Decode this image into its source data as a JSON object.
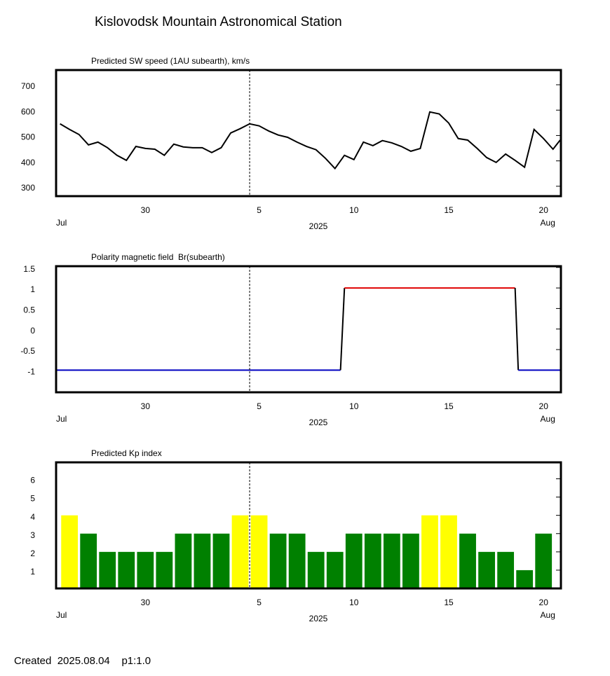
{
  "title": "Kislovodsk Mountain Astronomical Station",
  "footer": "Created  2025.08.04    p1:1.0",
  "chart_data": [
    {
      "type": "line",
      "title": "Predicted SW speed (1AU subearth), km/s",
      "color": "#000000",
      "x": [
        "2025-07-25T12:00",
        "2025-07-26T00:00",
        "2025-07-26T12:00",
        "2025-07-27T00:00",
        "2025-07-27T12:00",
        "2025-07-28T00:00",
        "2025-07-28T12:00",
        "2025-07-29T00:00",
        "2025-07-29T12:00",
        "2025-07-30T00:00",
        "2025-07-30T12:00",
        "2025-07-31T00:00",
        "2025-07-31T12:00",
        "2025-08-01T00:00",
        "2025-08-01T12:00",
        "2025-08-02T00:00",
        "2025-08-02T12:00",
        "2025-08-03T00:00",
        "2025-08-03T12:00",
        "2025-08-04T00:00",
        "2025-08-04T12:00",
        "2025-08-05T00:00",
        "2025-08-05T12:00",
        "2025-08-06T00:00",
        "2025-08-06T12:00",
        "2025-08-07T00:00",
        "2025-08-07T12:00",
        "2025-08-08T00:00",
        "2025-08-08T12:00",
        "2025-08-09T00:00",
        "2025-08-09T12:00",
        "2025-08-10T00:00",
        "2025-08-10T12:00",
        "2025-08-11T00:00",
        "2025-08-11T12:00",
        "2025-08-12T00:00",
        "2025-08-12T12:00",
        "2025-08-13T00:00",
        "2025-08-13T12:00",
        "2025-08-14T00:00",
        "2025-08-14T12:00",
        "2025-08-15T00:00",
        "2025-08-15T12:00",
        "2025-08-16T00:00",
        "2025-08-16T12:00",
        "2025-08-17T00:00",
        "2025-08-17T12:00",
        "2025-08-18T00:00",
        "2025-08-18T12:00",
        "2025-08-19T00:00",
        "2025-08-19T12:00",
        "2025-08-20T00:00",
        "2025-08-20T12:00",
        "2025-08-20T21:00"
      ],
      "values": [
        546,
        524,
        504,
        463,
        474,
        452,
        422,
        402,
        457,
        449,
        446,
        422,
        466,
        455,
        452,
        452,
        433,
        452,
        510,
        527,
        546,
        538,
        518,
        502,
        493,
        474,
        457,
        444,
        410,
        370,
        422,
        405,
        474,
        460,
        480,
        471,
        457,
        438,
        449,
        593,
        585,
        549,
        488,
        482,
        449,
        413,
        394,
        427,
        402,
        375,
        524,
        488,
        446,
        482
      ],
      "xlim": [
        "2025-07-25T07:00",
        "2025-08-20T22:00"
      ],
      "xticks": [
        {
          "value": "2025-07-30",
          "label": "30"
        },
        {
          "value": "2025-08-05",
          "label": "5"
        },
        {
          "value": "2025-08-10",
          "label": "10"
        },
        {
          "value": "2025-08-15",
          "label": "15"
        },
        {
          "value": "2025-08-20",
          "label": "20"
        }
      ],
      "month_labels": [
        {
          "value": "2025-07-25T07:00",
          "label": "Jul"
        },
        {
          "value": "2025-08-20",
          "label": "Aug"
        }
      ],
      "year_label": "2025",
      "ylim": [
        261,
        758
      ],
      "yticks": [
        700,
        600,
        500,
        400,
        300
      ],
      "marker_x": "2025-08-04T12:00"
    },
    {
      "type": "polarity",
      "title": "Polarity magnetic field  Br(subearth)",
      "positive_color": "#e00000",
      "negative_color": "#0000c0",
      "color": "#000000",
      "x": [
        "2025-07-25T07:00",
        "2025-08-09T07:00",
        "2025-08-09T12:00",
        "2025-08-18T12:00",
        "2025-08-18T16:00",
        "2025-08-20T22:00"
      ],
      "values": [
        -1,
        -1,
        1,
        1,
        -1,
        -1
      ],
      "xlim": [
        "2025-07-25T07:00",
        "2025-08-20T22:00"
      ],
      "xticks": [
        {
          "value": "2025-07-30",
          "label": "30"
        },
        {
          "value": "2025-08-05",
          "label": "5"
        },
        {
          "value": "2025-08-10",
          "label": "10"
        },
        {
          "value": "2025-08-15",
          "label": "15"
        },
        {
          "value": "2025-08-20",
          "label": "20"
        }
      ],
      "month_labels": [
        {
          "value": "2025-07-25T07:00",
          "label": "Jul"
        },
        {
          "value": "2025-08-20",
          "label": "Aug"
        }
      ],
      "year_label": "2025",
      "ylim": [
        -1.54,
        1.53
      ],
      "yticks": [
        1.5,
        1,
        0.5,
        0,
        -0.5,
        -1
      ],
      "marker_x": "2025-08-04T12:00"
    },
    {
      "type": "bar",
      "title": "Predicted Kp index",
      "x": [
        "2025-07-26",
        "2025-07-27",
        "2025-07-28",
        "2025-07-29",
        "2025-07-30",
        "2025-07-31",
        "2025-08-01",
        "2025-08-02",
        "2025-08-03",
        "2025-08-04",
        "2025-08-05",
        "2025-08-06",
        "2025-08-07",
        "2025-08-08",
        "2025-08-09",
        "2025-08-10",
        "2025-08-11",
        "2025-08-12",
        "2025-08-13",
        "2025-08-14",
        "2025-08-15",
        "2025-08-16",
        "2025-08-17",
        "2025-08-18",
        "2025-08-19",
        "2025-08-20"
      ],
      "values": [
        4,
        3,
        2,
        2,
        2,
        2,
        3,
        3,
        3,
        4,
        4,
        3,
        3,
        2,
        2,
        3,
        3,
        3,
        3,
        4,
        4,
        3,
        2,
        2,
        1,
        3
      ],
      "colors": [
        "#ffff00",
        "#008000",
        "#008000",
        "#008000",
        "#008000",
        "#008000",
        "#008000",
        "#008000",
        "#008000",
        "#ffff00",
        "#ffff00",
        "#008000",
        "#008000",
        "#008000",
        "#008000",
        "#008000",
        "#008000",
        "#008000",
        "#008000",
        "#ffff00",
        "#ffff00",
        "#008000",
        "#008000",
        "#008000",
        "#008000",
        "#008000"
      ],
      "xlim": [
        "2025-07-25T07:00",
        "2025-08-20T22:00"
      ],
      "xticks": [
        {
          "value": "2025-07-30",
          "label": "30"
        },
        {
          "value": "2025-08-05",
          "label": "5"
        },
        {
          "value": "2025-08-10",
          "label": "10"
        },
        {
          "value": "2025-08-15",
          "label": "15"
        },
        {
          "value": "2025-08-20",
          "label": "20"
        }
      ],
      "month_labels": [
        {
          "value": "2025-07-25T07:00",
          "label": "Jul"
        },
        {
          "value": "2025-08-20",
          "label": "Aug"
        }
      ],
      "year_label": "2025",
      "ylim": [
        0,
        6.9
      ],
      "yticks": [
        1,
        2,
        3,
        4,
        5,
        6
      ],
      "marker_x": "2025-08-04T12:00"
    }
  ]
}
